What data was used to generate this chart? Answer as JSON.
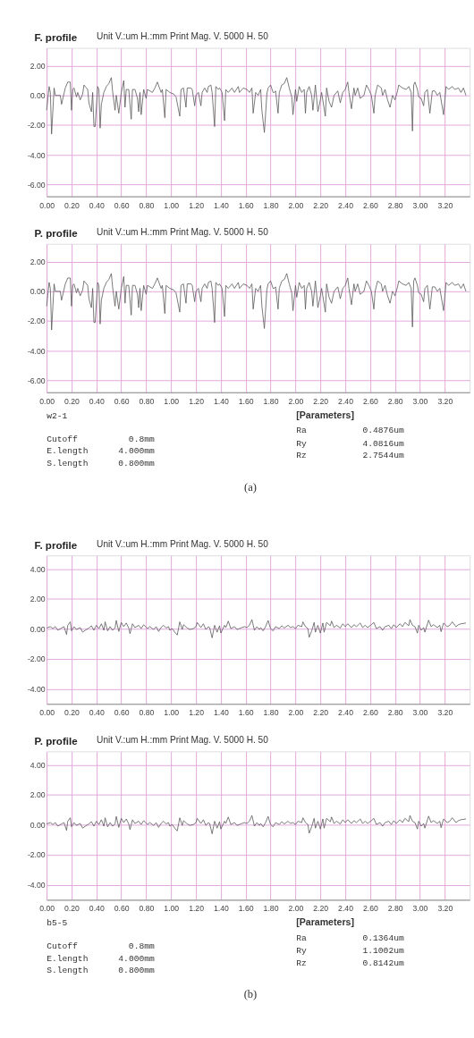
{
  "chart_data": [
    {
      "type": "line",
      "title": "F. profile",
      "subtitle": "Unit  V.:um  H.:mm     Print Mag.   V. 5000      H. 50",
      "color": "#555555",
      "grid": true,
      "line_style": "solid",
      "xlim": [
        0,
        3.4
      ],
      "ylim": [
        -6.8,
        3.2
      ],
      "xticks": [
        {
          "value": 0,
          "label": "0.00"
        },
        {
          "value": 0.2,
          "label": "0.20"
        },
        {
          "value": 0.4,
          "label": "0.40"
        },
        {
          "value": 0.6,
          "label": "0.60"
        },
        {
          "value": 0.8,
          "label": "0.80"
        },
        {
          "value": 1,
          "label": "1.00"
        },
        {
          "value": 1.2,
          "label": "1.20"
        },
        {
          "value": 1.4,
          "label": "1.40"
        },
        {
          "value": 1.6,
          "label": "1.60"
        },
        {
          "value": 1.8,
          "label": "1.80"
        },
        {
          "value": 2,
          "label": "2.00"
        },
        {
          "value": 2.2,
          "label": "2.20"
        },
        {
          "value": 2.4,
          "label": "2.40"
        },
        {
          "value": 2.6,
          "label": "2.60"
        },
        {
          "value": 2.8,
          "label": "2.80"
        },
        {
          "value": 3,
          "label": "3.00"
        },
        {
          "value": 3.2,
          "label": "3.20"
        }
      ],
      "yticks": [
        {
          "value": -6,
          "label": "-6.00"
        },
        {
          "value": -4,
          "label": "-4.00"
        },
        {
          "value": -2,
          "label": "-2.00"
        },
        {
          "value": 0,
          "label": "0.00"
        },
        {
          "value": 2,
          "label": "2.00"
        }
      ],
      "x": [
        0,
        0.02,
        0.03,
        0.04,
        0.06,
        0.07,
        0.09,
        0.11,
        0.12,
        0.15,
        0.17,
        0.19,
        0.2,
        0.21,
        0.22,
        0.24,
        0.25,
        0.27,
        0.29,
        0.3,
        0.33,
        0.34,
        0.36,
        0.37,
        0.38,
        0.39,
        0.41,
        0.42,
        0.43,
        0.44,
        0.46,
        0.48,
        0.5,
        0.52,
        0.53,
        0.55,
        0.56,
        0.58,
        0.6,
        0.62,
        0.63,
        0.64,
        0.66,
        0.68,
        0.69,
        0.71,
        0.73,
        0.74,
        0.75,
        0.76,
        0.78,
        0.8,
        0.81,
        0.85,
        0.87,
        0.89,
        0.92,
        0.93,
        0.95,
        0.96,
        0.99,
        1.02,
        1.04,
        1.07,
        1.08,
        1.1,
        1.12,
        1.13,
        1.16,
        1.17,
        1.19,
        1.2,
        1.22,
        1.24,
        1.25,
        1.27,
        1.29,
        1.3,
        1.32,
        1.33,
        1.35,
        1.36,
        1.38,
        1.39,
        1.41,
        1.43,
        1.44,
        1.46,
        1.49,
        1.51,
        1.54,
        1.55,
        1.58,
        1.61,
        1.63,
        1.65,
        1.66,
        1.68,
        1.7,
        1.72,
        1.73,
        1.75,
        1.77,
        1.78,
        1.8,
        1.82,
        1.83,
        1.84,
        1.86,
        1.87,
        1.89,
        1.91,
        1.93,
        1.95,
        1.97,
        1.98,
        2,
        2.01,
        2.03,
        2.05,
        2.07,
        2.08,
        2.09,
        2.11,
        2.13,
        2.14,
        2.16,
        2.18,
        2.2,
        2.21,
        2.24,
        2.25,
        2.27,
        2.29,
        2.31,
        2.34,
        2.36,
        2.38,
        2.4,
        2.42,
        2.43,
        2.45,
        2.47,
        2.48,
        2.5,
        2.52,
        2.55,
        2.57,
        2.59,
        2.61,
        2.63,
        2.64,
        2.66,
        2.69,
        2.7,
        2.72,
        2.74,
        2.76,
        2.78,
        2.8,
        2.82,
        2.83,
        2.86,
        2.89,
        2.91,
        2.93,
        2.94,
        2.95,
        2.96,
        2.98,
        2.99,
        3.01,
        3.03,
        3.04,
        3.06,
        3.08,
        3.1,
        3.12,
        3.14,
        3.16,
        3.19,
        3.21,
        3.23,
        3.26,
        3.28,
        3.31,
        3.33,
        3.35,
        3.37
      ],
      "values": [
        -1.0,
        0.6,
        0.2,
        -2.6,
        0.5,
        0.0,
        0.0,
        0.0,
        -0.6,
        0.5,
        0.9,
        0.9,
        -1.0,
        0.4,
        0.5,
        -0.1,
        0.2,
        -0.3,
        0.1,
        0.7,
        0.4,
        -0.5,
        -1.1,
        0.2,
        -2.1,
        -2.1,
        0.6,
        0.4,
        -2.2,
        -0.6,
        0.2,
        0.6,
        0.8,
        1.2,
        0.3,
        -1.0,
        0.0,
        -1.2,
        0.2,
        1.0,
        -0.8,
        0.4,
        0.4,
        -1.6,
        0.4,
        0.4,
        -0.2,
        -1.1,
        0.2,
        -1.3,
        0.4,
        -0.2,
        0.4,
        0.2,
        0.5,
        0.9,
        0.2,
        0.4,
        -1.5,
        0.4,
        0.2,
        0.1,
        -0.1,
        -1.4,
        0.4,
        0.5,
        -0.8,
        0.5,
        0.5,
        0.4,
        -0.7,
        0.0,
        0.2,
        -0.7,
        0.2,
        0.5,
        0.2,
        0.6,
        0.7,
        0.2,
        -2.1,
        0.6,
        0.4,
        0.5,
        0.2,
        -1.7,
        0.4,
        0.2,
        0.5,
        0.2,
        0.6,
        0.2,
        0.5,
        0.4,
        0.2,
        0.5,
        -1.2,
        0.2,
        0.0,
        0.4,
        -1.0,
        -2.5,
        0.1,
        0.5,
        0.7,
        0.2,
        0.2,
        0.3,
        -1.2,
        0.2,
        0.7,
        0.8,
        1.2,
        0.5,
        -0.1,
        -1.3,
        0.4,
        -0.4,
        0.6,
        0.2,
        0.4,
        -1.2,
        0.2,
        0.6,
        0.0,
        -1.0,
        0.7,
        -1.1,
        -0.3,
        0.2,
        -1.4,
        0.5,
        -0.4,
        -0.8,
        0.0,
        0.3,
        -0.5,
        0.2,
        0.4,
        0.9,
        0.2,
        -0.9,
        0.5,
        0.0,
        0.5,
        -0.2,
        0.0,
        0.7,
        0.4,
        0.0,
        -1.2,
        0.0,
        0.7,
        0.5,
        0.0,
        0.4,
        -0.3,
        -0.8,
        0.0,
        -0.3,
        0.3,
        0.7,
        0.5,
        0.4,
        0.6,
        0.2,
        -2.4,
        0.7,
        0.9,
        0.4,
        -0.1,
        -0.2,
        -0.7,
        0.2,
        0.4,
        -1.2,
        0.3,
        0.3,
        0.0,
        0.2,
        -1.3,
        0.6,
        0.4,
        0.6,
        0.4,
        0.5,
        0.2,
        0.5,
        0.0
      ]
    },
    {
      "type": "line",
      "title": "P. profile",
      "subtitle": "Unit  V.:um  H.:mm     Print Mag.   V. 5000      H. 50",
      "color": "#555555",
      "grid": true,
      "line_style": "solid",
      "xlim": [
        0,
        3.4
      ],
      "ylim": [
        -6.8,
        3.2
      ],
      "xticks": [
        {
          "value": 0,
          "label": "0.00"
        },
        {
          "value": 0.2,
          "label": "0.20"
        },
        {
          "value": 0.4,
          "label": "0.40"
        },
        {
          "value": 0.6,
          "label": "0.60"
        },
        {
          "value": 0.8,
          "label": "0.80"
        },
        {
          "value": 1,
          "label": "1.00"
        },
        {
          "value": 1.2,
          "label": "1.20"
        },
        {
          "value": 1.4,
          "label": "1.40"
        },
        {
          "value": 1.6,
          "label": "1.60"
        },
        {
          "value": 1.8,
          "label": "1.80"
        },
        {
          "value": 2,
          "label": "2.00"
        },
        {
          "value": 2.2,
          "label": "2.20"
        },
        {
          "value": 2.4,
          "label": "2.40"
        },
        {
          "value": 2.6,
          "label": "2.60"
        },
        {
          "value": 2.8,
          "label": "2.80"
        },
        {
          "value": 3,
          "label": "3.00"
        },
        {
          "value": 3.2,
          "label": "3.20"
        }
      ],
      "yticks": [
        {
          "value": -6,
          "label": "-6.00"
        },
        {
          "value": -4,
          "label": "-4.00"
        },
        {
          "value": -2,
          "label": "-2.00"
        },
        {
          "value": 0,
          "label": "0.00"
        },
        {
          "value": 2,
          "label": "2.00"
        }
      ],
      "x": [
        0,
        0.02,
        0.03,
        0.04,
        0.06,
        0.07,
        0.09,
        0.11,
        0.12,
        0.15,
        0.17,
        0.19,
        0.2,
        0.21,
        0.22,
        0.24,
        0.25,
        0.27,
        0.29,
        0.3,
        0.33,
        0.34,
        0.36,
        0.37,
        0.38,
        0.39,
        0.41,
        0.42,
        0.43,
        0.44,
        0.46,
        0.48,
        0.5,
        0.52,
        0.53,
        0.55,
        0.56,
        0.58,
        0.6,
        0.62,
        0.63,
        0.64,
        0.66,
        0.68,
        0.69,
        0.71,
        0.73,
        0.74,
        0.75,
        0.76,
        0.78,
        0.8,
        0.81,
        0.85,
        0.87,
        0.89,
        0.92,
        0.93,
        0.95,
        0.96,
        0.99,
        1.02,
        1.04,
        1.07,
        1.08,
        1.1,
        1.12,
        1.13,
        1.16,
        1.17,
        1.19,
        1.2,
        1.22,
        1.24,
        1.25,
        1.27,
        1.29,
        1.3,
        1.32,
        1.33,
        1.35,
        1.36,
        1.38,
        1.39,
        1.41,
        1.43,
        1.44,
        1.46,
        1.49,
        1.51,
        1.54,
        1.55,
        1.58,
        1.61,
        1.63,
        1.65,
        1.66,
        1.68,
        1.7,
        1.72,
        1.73,
        1.75,
        1.77,
        1.78,
        1.8,
        1.82,
        1.83,
        1.84,
        1.86,
        1.87,
        1.89,
        1.91,
        1.93,
        1.95,
        1.97,
        1.98,
        2,
        2.01,
        2.03,
        2.05,
        2.07,
        2.08,
        2.09,
        2.11,
        2.13,
        2.14,
        2.16,
        2.18,
        2.2,
        2.21,
        2.24,
        2.25,
        2.27,
        2.29,
        2.31,
        2.34,
        2.36,
        2.38,
        2.4,
        2.42,
        2.43,
        2.45,
        2.47,
        2.48,
        2.5,
        2.52,
        2.55,
        2.57,
        2.59,
        2.61,
        2.63,
        2.64,
        2.66,
        2.69,
        2.7,
        2.72,
        2.74,
        2.76,
        2.78,
        2.8,
        2.82,
        2.83,
        2.86,
        2.89,
        2.91,
        2.93,
        2.94,
        2.95,
        2.96,
        2.98,
        2.99,
        3.01,
        3.03,
        3.04,
        3.06,
        3.08,
        3.1,
        3.12,
        3.14,
        3.16,
        3.19,
        3.21,
        3.23,
        3.26,
        3.28,
        3.31,
        3.33,
        3.35,
        3.37
      ],
      "values": [
        -1.0,
        0.6,
        0.2,
        -2.6,
        0.5,
        0.0,
        0.0,
        0.0,
        -0.6,
        0.5,
        0.9,
        0.9,
        -1.0,
        0.4,
        0.5,
        -0.1,
        0.2,
        -0.3,
        0.1,
        0.7,
        0.4,
        -0.5,
        -1.1,
        0.2,
        -2.1,
        -2.1,
        0.6,
        0.4,
        -2.2,
        -0.6,
        0.2,
        0.6,
        0.8,
        1.2,
        0.3,
        -1.0,
        0.0,
        -1.2,
        0.2,
        1.0,
        -0.8,
        0.4,
        0.4,
        -1.6,
        0.4,
        0.4,
        -0.2,
        -1.1,
        0.2,
        -1.3,
        0.4,
        -0.2,
        0.4,
        0.2,
        0.5,
        0.9,
        0.2,
        0.4,
        -1.5,
        0.4,
        0.2,
        0.1,
        -0.1,
        -1.4,
        0.4,
        0.5,
        -0.8,
        0.5,
        0.5,
        0.4,
        -0.7,
        0.0,
        0.2,
        -0.7,
        0.2,
        0.5,
        0.2,
        0.6,
        0.7,
        0.2,
        -2.1,
        0.6,
        0.4,
        0.5,
        0.2,
        -1.7,
        0.4,
        0.2,
        0.5,
        0.2,
        0.6,
        0.2,
        0.5,
        0.4,
        0.2,
        0.5,
        -1.2,
        0.2,
        0.0,
        0.4,
        -1.0,
        -2.5,
        0.1,
        0.5,
        0.7,
        0.2,
        0.2,
        0.3,
        -1.2,
        0.2,
        0.7,
        0.8,
        1.2,
        0.5,
        -0.1,
        -1.3,
        0.4,
        -0.4,
        0.6,
        0.2,
        0.4,
        -1.2,
        0.2,
        0.6,
        0.0,
        -1.0,
        0.7,
        -1.1,
        -0.3,
        0.2,
        -1.4,
        0.5,
        -0.4,
        -0.8,
        0.0,
        0.3,
        -0.5,
        0.2,
        0.4,
        0.9,
        0.2,
        -0.9,
        0.5,
        0.0,
        0.5,
        -0.2,
        0.0,
        0.7,
        0.4,
        0.0,
        -1.2,
        0.0,
        0.7,
        0.5,
        0.0,
        0.4,
        -0.3,
        -0.8,
        0.0,
        -0.3,
        0.3,
        0.7,
        0.5,
        0.4,
        0.6,
        0.2,
        -2.4,
        0.7,
        0.9,
        0.4,
        -0.1,
        -0.2,
        -0.7,
        0.2,
        0.4,
        -1.2,
        0.3,
        0.3,
        0.0,
        0.2,
        -1.3,
        0.6,
        0.4,
        0.6,
        0.4,
        0.5,
        0.2,
        0.5,
        0.0
      ],
      "annotations": [
        "w2-1",
        "Cutoff",
        "0.8mm",
        "E.length",
        "4.000mm",
        "S.length",
        "0.800mm",
        "[Parameters]",
        "Ra",
        "0.4876um",
        "Ry",
        "4.0816um",
        "Rz",
        "2.7544um",
        "(a)"
      ]
    },
    {
      "type": "line",
      "title": "F. profile",
      "subtitle": "Unit  V.:um  H.:mm     Print Mag.   V. 5000      H. 50",
      "color": "#555555",
      "grid": true,
      "line_style": "solid",
      "xlim": [
        0,
        3.4
      ],
      "ylim": [
        -5.0,
        4.9
      ],
      "xticks": [
        {
          "value": 0,
          "label": "0.00"
        },
        {
          "value": 0.2,
          "label": "0.20"
        },
        {
          "value": 0.4,
          "label": "0.40"
        },
        {
          "value": 0.6,
          "label": "0.60"
        },
        {
          "value": 0.8,
          "label": "0.80"
        },
        {
          "value": 1,
          "label": "1.00"
        },
        {
          "value": 1.2,
          "label": "1.20"
        },
        {
          "value": 1.4,
          "label": "1.40"
        },
        {
          "value": 1.6,
          "label": "1.60"
        },
        {
          "value": 1.8,
          "label": "1.80"
        },
        {
          "value": 2,
          "label": "2.00"
        },
        {
          "value": 2.2,
          "label": "2.20"
        },
        {
          "value": 2.4,
          "label": "2.40"
        },
        {
          "value": 2.6,
          "label": "2.60"
        },
        {
          "value": 2.8,
          "label": "2.80"
        },
        {
          "value": 3,
          "label": "3.00"
        },
        {
          "value": 3.2,
          "label": "3.20"
        }
      ],
      "yticks": [
        {
          "value": -4,
          "label": "-4.00"
        },
        {
          "value": -2,
          "label": "-2.00"
        },
        {
          "value": 0,
          "label": "0.00"
        },
        {
          "value": 2,
          "label": "2.00"
        },
        {
          "value": 4,
          "label": "4.00"
        }
      ],
      "x": [
        0,
        0.03,
        0.05,
        0.07,
        0.09,
        0.12,
        0.14,
        0.16,
        0.17,
        0.19,
        0.2,
        0.22,
        0.24,
        0.27,
        0.29,
        0.31,
        0.34,
        0.36,
        0.38,
        0.4,
        0.42,
        0.44,
        0.46,
        0.47,
        0.49,
        0.51,
        0.53,
        0.55,
        0.56,
        0.58,
        0.6,
        0.62,
        0.64,
        0.66,
        0.67,
        0.69,
        0.71,
        0.74,
        0.76,
        0.78,
        0.81,
        0.83,
        0.86,
        0.88,
        0.9,
        0.92,
        0.94,
        0.96,
        0.98,
        0.99,
        1.01,
        1.03,
        1.05,
        1.07,
        1.09,
        1.1,
        1.13,
        1.15,
        1.18,
        1.2,
        1.21,
        1.24,
        1.26,
        1.28,
        1.3,
        1.31,
        1.33,
        1.35,
        1.37,
        1.39,
        1.4,
        1.43,
        1.44,
        1.46,
        1.48,
        1.51,
        1.53,
        1.56,
        1.59,
        1.61,
        1.63,
        1.65,
        1.67,
        1.69,
        1.71,
        1.72,
        1.74,
        1.76,
        1.78,
        1.8,
        1.82,
        1.84,
        1.87,
        1.89,
        1.91,
        1.94,
        1.96,
        1.98,
        2,
        2.02,
        2.05,
        2.06,
        2.08,
        2.1,
        2.11,
        2.13,
        2.15,
        2.16,
        2.18,
        2.2,
        2.22,
        2.23,
        2.25,
        2.28,
        2.29,
        2.31,
        2.33,
        2.36,
        2.38,
        2.4,
        2.42,
        2.45,
        2.47,
        2.49,
        2.52,
        2.54,
        2.56,
        2.58,
        2.61,
        2.63,
        2.65,
        2.68,
        2.7,
        2.72,
        2.75,
        2.77,
        2.79,
        2.81,
        2.84,
        2.86,
        2.88,
        2.91,
        2.92,
        2.94,
        2.96,
        2.98,
        2.99,
        3.01,
        3.03,
        3.04,
        3.07,
        3.09,
        3.11,
        3.14,
        3.16,
        3.17,
        3.19,
        3.22,
        3.24,
        3.26,
        3.29,
        3.31,
        3.33,
        3.37
      ],
      "values": [
        0.06,
        0.15,
        0.02,
        0.15,
        -0.09,
        0.06,
        0.15,
        -0.37,
        0.24,
        0.47,
        -0.13,
        0.15,
        -0.04,
        0.09,
        -0.22,
        -0.09,
        0.06,
        0.21,
        -0.09,
        0.24,
        0.02,
        0.34,
        -0.09,
        0.47,
        -0.13,
        0.15,
        -0.09,
        0.06,
        0.56,
        -0.17,
        0.43,
        0.15,
        0.39,
        0.06,
        -0.32,
        0.34,
        0.09,
        0.24,
        0.02,
        0.28,
        0.02,
        0.15,
        -0.04,
        0.15,
        -0.17,
        0.09,
        0.24,
        0.06,
        0.15,
        -0.09,
        0.02,
        -0.22,
        -0.41,
        0.47,
        -0.04,
        0.28,
        0.06,
        -0.04,
        0.02,
        0.15,
        0.43,
        0.09,
        0.34,
        -0.04,
        0.15,
        0.09,
        -0.6,
        0.24,
        -0.22,
        0.21,
        -0.28,
        0.24,
        0.09,
        0.52,
        0.02,
        0.15,
        -0.04,
        0.06,
        0.15,
        0.09,
        0.24,
        0.62,
        -0.09,
        0.15,
        -0.04,
        0.09,
        -0.13,
        0.15,
        0.56,
        0.02,
        -0.13,
        0.15,
        0.02,
        0.21,
        0.06,
        0.24,
        0.09,
        0.15,
        0.02,
        0.24,
        0.15,
        0.47,
        0.15,
        0.02,
        -0.56,
        -0.13,
        0.43,
        -0.22,
        0.24,
        -0.28,
        0.39,
        -0.22,
        0.43,
        0.21,
        0.52,
        0.09,
        0.24,
        0.06,
        0.34,
        0.15,
        0.34,
        0.09,
        0.28,
        0.15,
        0.39,
        0.09,
        0.24,
        0.09,
        0.28,
        0.43,
        0.02,
        0.15,
        -0.09,
        0.15,
        0.24,
        0.02,
        0.28,
        0.09,
        0.34,
        0.15,
        0.43,
        0.21,
        0.62,
        0.24,
        0.15,
        -0.28,
        0.24,
        -0.09,
        0.09,
        -0.22,
        0.58,
        0.15,
        0.28,
        0.09,
        0.24,
        -0.19,
        0.39,
        0.15,
        0.24,
        0.47,
        0.15,
        0.28,
        0.34,
        0.39
      ]
    },
    {
      "type": "line",
      "title": "P. profile",
      "subtitle": "Unit  V.:um  H.:mm     Print Mag.   V. 5000      H. 50",
      "color": "#555555",
      "grid": true,
      "line_style": "solid",
      "xlim": [
        0,
        3.4
      ],
      "ylim": [
        -5.0,
        4.9
      ],
      "xticks": [
        {
          "value": 0,
          "label": "0.00"
        },
        {
          "value": 0.2,
          "label": "0.20"
        },
        {
          "value": 0.4,
          "label": "0.40"
        },
        {
          "value": 0.6,
          "label": "0.60"
        },
        {
          "value": 0.8,
          "label": "0.80"
        },
        {
          "value": 1,
          "label": "1.00"
        },
        {
          "value": 1.2,
          "label": "1.20"
        },
        {
          "value": 1.4,
          "label": "1.40"
        },
        {
          "value": 1.6,
          "label": "1.60"
        },
        {
          "value": 1.8,
          "label": "1.80"
        },
        {
          "value": 2,
          "label": "2.00"
        },
        {
          "value": 2.2,
          "label": "2.20"
        },
        {
          "value": 2.4,
          "label": "2.40"
        },
        {
          "value": 2.6,
          "label": "2.60"
        },
        {
          "value": 2.8,
          "label": "2.80"
        },
        {
          "value": 3,
          "label": "3.00"
        },
        {
          "value": 3.2,
          "label": "3.20"
        }
      ],
      "yticks": [
        {
          "value": -4,
          "label": "-4.00"
        },
        {
          "value": -2,
          "label": "-2.00"
        },
        {
          "value": 0,
          "label": "0.00"
        },
        {
          "value": 2,
          "label": "2.00"
        },
        {
          "value": 4,
          "label": "4.00"
        }
      ],
      "x": [
        0,
        0.03,
        0.05,
        0.07,
        0.09,
        0.12,
        0.14,
        0.16,
        0.17,
        0.19,
        0.2,
        0.22,
        0.24,
        0.27,
        0.29,
        0.31,
        0.34,
        0.36,
        0.38,
        0.4,
        0.42,
        0.44,
        0.46,
        0.47,
        0.49,
        0.51,
        0.53,
        0.55,
        0.56,
        0.58,
        0.6,
        0.62,
        0.64,
        0.66,
        0.67,
        0.69,
        0.71,
        0.74,
        0.76,
        0.78,
        0.81,
        0.83,
        0.86,
        0.88,
        0.9,
        0.92,
        0.94,
        0.96,
        0.98,
        0.99,
        1.01,
        1.03,
        1.05,
        1.07,
        1.09,
        1.1,
        1.13,
        1.15,
        1.18,
        1.2,
        1.21,
        1.24,
        1.26,
        1.28,
        1.3,
        1.31,
        1.33,
        1.35,
        1.37,
        1.39,
        1.4,
        1.43,
        1.44,
        1.46,
        1.48,
        1.51,
        1.53,
        1.56,
        1.59,
        1.61,
        1.63,
        1.65,
        1.67,
        1.69,
        1.71,
        1.72,
        1.74,
        1.76,
        1.78,
        1.8,
        1.82,
        1.84,
        1.87,
        1.89,
        1.91,
        1.94,
        1.96,
        1.98,
        2,
        2.02,
        2.05,
        2.06,
        2.08,
        2.1,
        2.11,
        2.13,
        2.15,
        2.16,
        2.18,
        2.2,
        2.22,
        2.23,
        2.25,
        2.28,
        2.29,
        2.31,
        2.33,
        2.36,
        2.38,
        2.4,
        2.42,
        2.45,
        2.47,
        2.49,
        2.52,
        2.54,
        2.56,
        2.58,
        2.61,
        2.63,
        2.65,
        2.68,
        2.7,
        2.72,
        2.75,
        2.77,
        2.79,
        2.81,
        2.84,
        2.86,
        2.88,
        2.91,
        2.92,
        2.94,
        2.96,
        2.98,
        2.99,
        3.01,
        3.03,
        3.04,
        3.07,
        3.09,
        3.11,
        3.14,
        3.16,
        3.17,
        3.19,
        3.22,
        3.24,
        3.26,
        3.29,
        3.31,
        3.33,
        3.37
      ],
      "values": [
        0.06,
        0.15,
        0.02,
        0.15,
        -0.09,
        0.06,
        0.15,
        -0.37,
        0.24,
        0.47,
        -0.13,
        0.15,
        -0.04,
        0.09,
        -0.22,
        -0.09,
        0.06,
        0.21,
        -0.09,
        0.24,
        0.02,
        0.34,
        -0.09,
        0.47,
        -0.13,
        0.15,
        -0.09,
        0.06,
        0.56,
        -0.17,
        0.43,
        0.15,
        0.39,
        0.06,
        -0.32,
        0.34,
        0.09,
        0.24,
        0.02,
        0.28,
        0.02,
        0.15,
        -0.04,
        0.15,
        -0.17,
        0.09,
        0.24,
        0.06,
        0.15,
        -0.09,
        0.02,
        -0.22,
        -0.41,
        0.47,
        -0.04,
        0.28,
        0.06,
        -0.04,
        0.02,
        0.15,
        0.43,
        0.09,
        0.34,
        -0.04,
        0.15,
        0.09,
        -0.6,
        0.24,
        -0.22,
        0.21,
        -0.28,
        0.24,
        0.09,
        0.52,
        0.02,
        0.15,
        -0.04,
        0.06,
        0.15,
        0.09,
        0.24,
        0.62,
        -0.09,
        0.15,
        -0.04,
        0.09,
        -0.13,
        0.15,
        0.56,
        0.02,
        -0.13,
        0.15,
        0.02,
        0.21,
        0.06,
        0.24,
        0.09,
        0.15,
        0.02,
        0.24,
        0.15,
        0.47,
        0.15,
        0.02,
        -0.56,
        -0.13,
        0.43,
        -0.22,
        0.24,
        -0.28,
        0.39,
        -0.22,
        0.43,
        0.21,
        0.52,
        0.09,
        0.24,
        0.06,
        0.34,
        0.15,
        0.34,
        0.09,
        0.28,
        0.15,
        0.39,
        0.09,
        0.24,
        0.09,
        0.28,
        0.43,
        0.02,
        0.15,
        -0.09,
        0.15,
        0.24,
        0.02,
        0.28,
        0.09,
        0.34,
        0.15,
        0.43,
        0.21,
        0.62,
        0.24,
        0.15,
        -0.28,
        0.24,
        -0.09,
        0.09,
        -0.22,
        0.58,
        0.15,
        0.28,
        0.09,
        0.24,
        -0.19,
        0.39,
        0.15,
        0.24,
        0.47,
        0.15,
        0.28,
        0.34,
        0.39
      ],
      "annotations": [
        "b5-5",
        "Cutoff",
        "0.8mm",
        "E.length",
        "4.000mm",
        "S.length",
        "0.800mm",
        "[Parameters]",
        "Ra",
        "0.1364um",
        "Ry",
        "1.1002um",
        "Rz",
        "0.8142um",
        "(b)"
      ]
    }
  ]
}
